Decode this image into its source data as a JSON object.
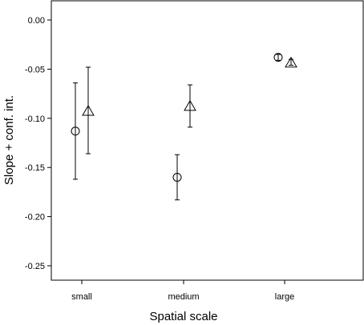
{
  "chart_data": {
    "type": "scatter",
    "title": "",
    "xlabel": "Spatial scale",
    "ylabel": "Slope + conf. int.",
    "categories": [
      "small",
      "medium",
      "large"
    ],
    "ylim": [
      -0.26,
      0.02
    ],
    "yticks": [
      0.0,
      -0.05,
      -0.1,
      -0.15,
      -0.2,
      -0.25
    ],
    "ytick_labels": [
      "0.00",
      "-0.05",
      "-0.10",
      "-0.15",
      "-0.20",
      "-0.25"
    ],
    "grid": false,
    "legend": "none",
    "series": [
      {
        "marker": "circle",
        "values": [
          -0.113,
          -0.16,
          -0.038
        ],
        "ci_low": [
          -0.162,
          -0.183,
          -0.041
        ],
        "ci_high": [
          -0.064,
          -0.137,
          -0.035
        ]
      },
      {
        "marker": "triangle",
        "values": [
          -0.092,
          -0.087,
          -0.043
        ],
        "ci_low": [
          -0.136,
          -0.109,
          -0.046
        ],
        "ci_high": [
          -0.048,
          -0.066,
          -0.04
        ]
      }
    ]
  }
}
